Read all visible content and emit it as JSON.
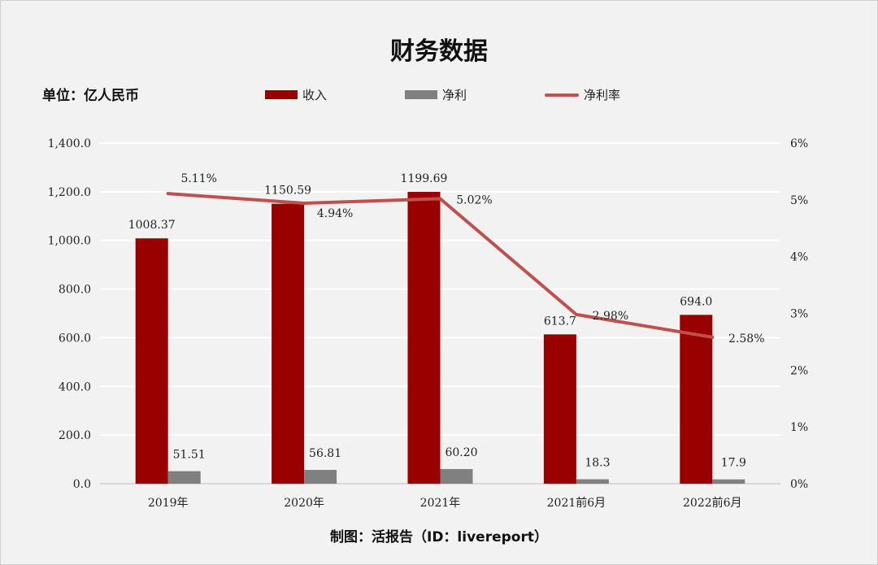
{
  "chart_data": {
    "type": "bar+line",
    "title": "财务数据",
    "unit_label": "单位：亿人民币",
    "credit": "制图：活报告（ID：livereport）",
    "categories": [
      "2019年",
      "2020年",
      "2021年",
      "2021前6月",
      "2022前6月"
    ],
    "series": [
      {
        "name": "收入",
        "type": "bar",
        "axis": "left",
        "color": "#990000",
        "values": [
          1008.37,
          1150.59,
          1199.69,
          613.7,
          694.0
        ],
        "labels": [
          "1008.37",
          "1150.59",
          "1199.69",
          "613.7",
          "694.0"
        ]
      },
      {
        "name": "净利",
        "type": "bar",
        "axis": "left",
        "color": "#808080",
        "values": [
          51.51,
          56.81,
          60.2,
          18.3,
          17.9
        ],
        "labels": [
          "51.51",
          "56.81",
          "60.20",
          "18.3",
          "17.9"
        ]
      },
      {
        "name": "净利率",
        "type": "line",
        "axis": "right",
        "color": "#c0504d",
        "values": [
          5.11,
          4.94,
          5.02,
          2.98,
          2.58
        ],
        "labels": [
          "5.11%",
          "4.94%",
          "5.02%",
          "2.98%",
          "2.58%"
        ]
      }
    ],
    "y_left": {
      "range": [
        0,
        1400
      ],
      "ticks": [
        "0.0",
        "200.0",
        "400.0",
        "600.0",
        "800.0",
        "1,000.0",
        "1,200.0",
        "1,400.0"
      ]
    },
    "y_right": {
      "range": [
        0,
        6
      ],
      "ticks": [
        "0%",
        "1%",
        "2%",
        "3%",
        "4%",
        "5%",
        "6%"
      ]
    },
    "grid": true,
    "legend_position": "top"
  }
}
